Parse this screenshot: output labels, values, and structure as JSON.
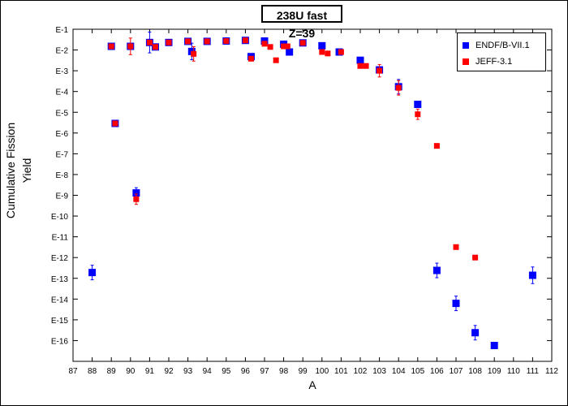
{
  "chart_data": {
    "type": "scatter",
    "title": "238U fast Z=39",
    "xlabel": "A",
    "ylabel": "Cumulative Fission Yield",
    "xlim": [
      87,
      112
    ],
    "ylim_exponent": [
      -17,
      -1
    ],
    "yscale": "log",
    "x_ticks": [
      "87",
      "88",
      "89",
      "90",
      "91",
      "92",
      "93",
      "94",
      "95",
      "96",
      "97",
      "98",
      "99",
      "100",
      "101",
      "102",
      "103",
      "104",
      "105",
      "106",
      "107",
      "108",
      "109",
      "110",
      "111",
      "112"
    ],
    "y_ticks": [
      "E-1",
      "E-2",
      "E-3",
      "E-4",
      "E-5",
      "E-6",
      "E-7",
      "E-8",
      "E-9",
      "E-10",
      "E-11",
      "E-12",
      "E-13",
      "E-14",
      "E-15",
      "E-16"
    ],
    "grid": false,
    "legend_position": "top-right",
    "series": [
      {
        "name": "ENDF/B-VII.1",
        "color": "#0000ff",
        "marker": "square",
        "points": [
          {
            "x": 88.0,
            "y": 1.9e-13,
            "err": 0.35
          },
          {
            "x": 89.0,
            "y": 0.015
          },
          {
            "x": 89.2,
            "y": 2.9e-06
          },
          {
            "x": 90.0,
            "y": 0.015
          },
          {
            "x": 90.3,
            "y": 1.3e-09,
            "err": 0.25
          },
          {
            "x": 91.0,
            "y": 0.023,
            "err": 0.5
          },
          {
            "x": 91.3,
            "y": 0.014
          },
          {
            "x": 92.0,
            "y": 0.023
          },
          {
            "x": 93.0,
            "y": 0.026
          },
          {
            "x": 93.2,
            "y": 0.0085,
            "err": 0.4
          },
          {
            "x": 94.0,
            "y": 0.026
          },
          {
            "x": 95.0,
            "y": 0.027
          },
          {
            "x": 96.0,
            "y": 0.029
          },
          {
            "x": 96.3,
            "y": 0.0048
          },
          {
            "x": 97.0,
            "y": 0.027
          },
          {
            "x": 98.0,
            "y": 0.019
          },
          {
            "x": 98.3,
            "y": 0.008
          },
          {
            "x": 99.0,
            "y": 0.022
          },
          {
            "x": 100.0,
            "y": 0.016
          },
          {
            "x": 100.9,
            "y": 0.008
          },
          {
            "x": 102.0,
            "y": 0.0032
          },
          {
            "x": 103.0,
            "y": 0.0011
          },
          {
            "x": 104.0,
            "y": 0.00017,
            "err": 0.35
          },
          {
            "x": 105.0,
            "y": 2.4e-05
          },
          {
            "x": 106.0,
            "y": 2.4e-13,
            "err": 0.35
          },
          {
            "x": 107.0,
            "y": 6.2e-15,
            "err": 0.35
          },
          {
            "x": 108.0,
            "y": 2.4e-16,
            "err": 0.35
          },
          {
            "x": 109.0,
            "y": 5.8e-17
          },
          {
            "x": 111.0,
            "y": 1.4e-13,
            "err": 0.4
          }
        ]
      },
      {
        "name": "JEFF-3.1",
        "color": "#ff0000",
        "marker": "square",
        "points": [
          {
            "x": 89.0,
            "y": 0.015
          },
          {
            "x": 89.2,
            "y": 2.9e-06
          },
          {
            "x": 90.0,
            "y": 0.015,
            "err": 0.4
          },
          {
            "x": 90.3,
            "y": 6.5e-10,
            "err": 0.25
          },
          {
            "x": 91.0,
            "y": 0.023
          },
          {
            "x": 91.3,
            "y": 0.014
          },
          {
            "x": 92.0,
            "y": 0.023
          },
          {
            "x": 93.0,
            "y": 0.026
          },
          {
            "x": 93.3,
            "y": 0.0065,
            "err": 0.35
          },
          {
            "x": 94.0,
            "y": 0.026
          },
          {
            "x": 95.0,
            "y": 0.027
          },
          {
            "x": 96.0,
            "y": 0.029
          },
          {
            "x": 96.3,
            "y": 0.0038
          },
          {
            "x": 97.0,
            "y": 0.02
          },
          {
            "x": 97.3,
            "y": 0.014
          },
          {
            "x": 97.6,
            "y": 0.0032
          },
          {
            "x": 98.0,
            "y": 0.015
          },
          {
            "x": 98.2,
            "y": 0.015
          },
          {
            "x": 99.0,
            "y": 0.022
          },
          {
            "x": 100.0,
            "y": 0.008
          },
          {
            "x": 100.3,
            "y": 0.0068
          },
          {
            "x": 101.0,
            "y": 0.008
          },
          {
            "x": 102.0,
            "y": 0.0017
          },
          {
            "x": 102.3,
            "y": 0.0017
          },
          {
            "x": 103.0,
            "y": 0.001,
            "err": 0.3
          },
          {
            "x": 104.0,
            "y": 0.00015,
            "err": 0.35
          },
          {
            "x": 105.0,
            "y": 8e-06,
            "err": 0.25
          },
          {
            "x": 106.0,
            "y": 2.4e-07
          },
          {
            "x": 107.0,
            "y": 3.2e-12
          },
          {
            "x": 108.0,
            "y": 1e-12
          }
        ]
      }
    ]
  }
}
